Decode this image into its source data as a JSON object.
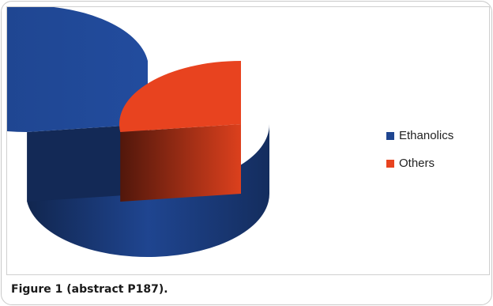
{
  "caption": "Figure 1 (abstract P187).",
  "chart_data": {
    "type": "pie",
    "style": "3d-exploded",
    "categories": [
      "Ethanolics",
      "Others"
    ],
    "values": [
      73,
      27
    ],
    "colors": [
      "#1f4590",
      "#e8431f"
    ],
    "legend_position": "right"
  }
}
